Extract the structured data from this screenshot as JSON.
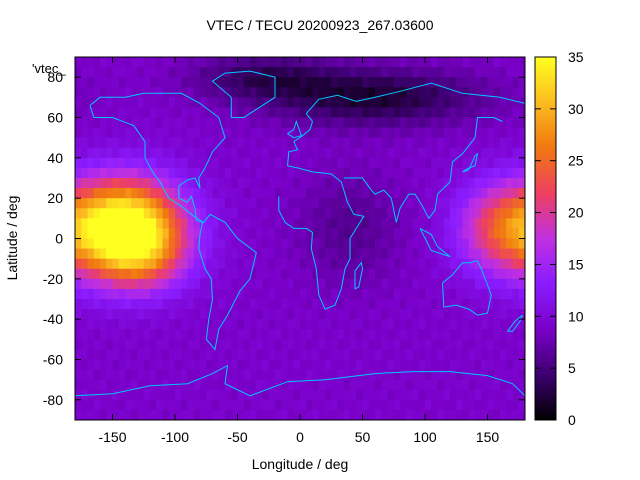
{
  "chart_data": {
    "type": "heatmap",
    "title": "VTEC / TECU 20200923_267.03600",
    "xlabel": "Longitude / deg",
    "ylabel": "Latitude / deg",
    "xlim": [
      -180,
      180
    ],
    "ylim": [
      -90,
      90
    ],
    "x_ticks": [
      -150,
      -100,
      -50,
      0,
      50,
      100,
      150
    ],
    "y_ticks": [
      -80,
      -60,
      -40,
      -20,
      0,
      20,
      40,
      60,
      80
    ],
    "colorbar": {
      "min": 0,
      "max": 35,
      "ticks": [
        0,
        5,
        10,
        15,
        20,
        25,
        30,
        35
      ]
    },
    "key_label": "'vtec_",
    "palette": [
      "#000000",
      "#3d0070",
      "#7a00c8",
      "#8a1cff",
      "#c030e0",
      "#ee4060",
      "#f07810",
      "#fcbc20",
      "#ffff20"
    ],
    "overlay_color": "#00c8ff",
    "regions": [
      {
        "lon": -140,
        "lat": 5,
        "vtec": 30,
        "sigma_lon": 32,
        "sigma_lat": 17
      },
      {
        "lon": -125,
        "lat": -10,
        "vtec": 6,
        "sigma_lon": 25,
        "sigma_lat": 12
      },
      {
        "lon": 160,
        "lat": 5,
        "vtec": 12,
        "sigma_lon": 25,
        "sigma_lat": 16
      },
      {
        "lon": 60,
        "lat": 70,
        "vtec": -7,
        "sigma_lon": 60,
        "sigma_lat": 10
      },
      {
        "lon": -30,
        "lat": 80,
        "vtec": -5,
        "sigma_lon": 40,
        "sigma_lat": 8
      },
      {
        "lon": 40,
        "lat": 5,
        "vtec": -3,
        "sigma_lon": 30,
        "sigma_lat": 20
      }
    ],
    "base_vtec": 9
  }
}
